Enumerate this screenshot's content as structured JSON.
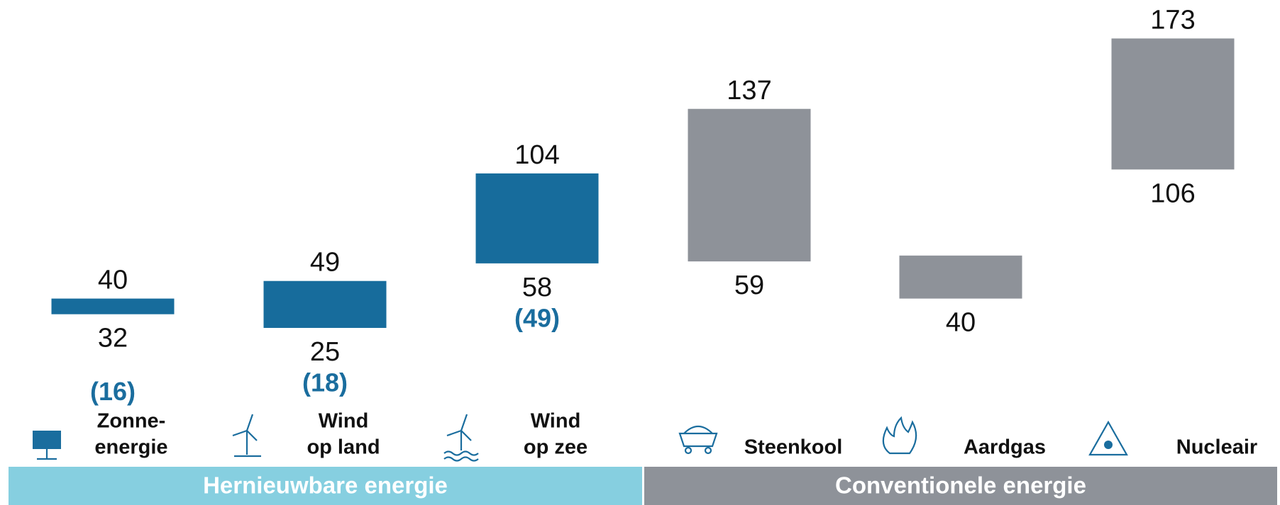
{
  "chart_data": {
    "type": "floating_bar",
    "categories": [
      [
        "Zonne-",
        "energie"
      ],
      [
        "Wind",
        "op land"
      ],
      [
        "Wind",
        "op zee"
      ],
      [
        "Steenkool"
      ],
      [
        "Aardgas"
      ],
      [
        "Nucleair"
      ]
    ],
    "low": [
      32,
      25,
      58,
      59,
      40,
      106
    ],
    "high": [
      40,
      49,
      104,
      137,
      62,
      173
    ],
    "high_labels": [
      "40",
      "49",
      "104",
      "137",
      null,
      "173"
    ],
    "subsidized": [
      16,
      18,
      49,
      null,
      null,
      null
    ],
    "subsidized_labels": [
      "(16)",
      "(18)",
      "(49)",
      null,
      null,
      null
    ],
    "subsidized_color": "#1a6d9e",
    "colors": [
      "#176c9c",
      "#176c9c",
      "#176c9c",
      "#8e9299",
      "#8e9299",
      "#8e9299"
    ],
    "groups": [
      {
        "name": "Hernieuwbare energie",
        "color": "#86cfe0",
        "members": [
          0,
          1,
          2
        ]
      },
      {
        "name": "Conventionele energie",
        "color": "#8e9299",
        "members": [
          3,
          4,
          5
        ]
      }
    ],
    "ylim": [
      0,
      180
    ]
  }
}
